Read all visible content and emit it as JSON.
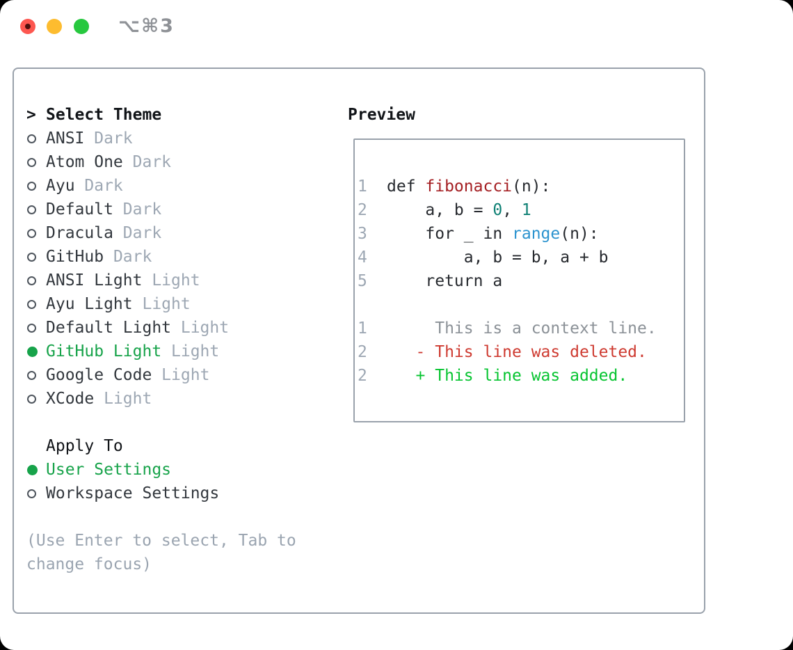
{
  "window": {
    "title": "⌥⌘3",
    "traffic_lights": [
      "close",
      "minimize",
      "zoom"
    ]
  },
  "colors": {
    "accent_green": "#17a34a",
    "added_green": "#06c430",
    "deleted_red": "#ce3a30",
    "function_red": "#a41e22",
    "number_teal": "#0e8074",
    "builtin_blue": "#2b93cf",
    "muted_gray": "#9da7b3",
    "border_gray": "#99a1ab"
  },
  "theme_picker": {
    "prompt": ">",
    "title": "Select Theme",
    "items": [
      {
        "name": "ANSI",
        "variant": "Dark",
        "selected": false
      },
      {
        "name": "Atom One",
        "variant": "Dark",
        "selected": false
      },
      {
        "name": "Ayu",
        "variant": "Dark",
        "selected": false
      },
      {
        "name": "Default",
        "variant": "Dark",
        "selected": false
      },
      {
        "name": "Dracula",
        "variant": "Dark",
        "selected": false
      },
      {
        "name": "GitHub",
        "variant": "Dark",
        "selected": false
      },
      {
        "name": "ANSI Light",
        "variant": "Light",
        "selected": false
      },
      {
        "name": "Ayu Light",
        "variant": "Light",
        "selected": false
      },
      {
        "name": "Default Light",
        "variant": "Light",
        "selected": false
      },
      {
        "name": "GitHub Light",
        "variant": "Light",
        "selected": true
      },
      {
        "name": "Google Code",
        "variant": "Light",
        "selected": false
      },
      {
        "name": "XCode",
        "variant": "Light",
        "selected": false
      }
    ],
    "apply_to": {
      "label": "Apply To",
      "options": [
        {
          "label": "User Settings",
          "selected": true
        },
        {
          "label": "Workspace Settings",
          "selected": false
        }
      ]
    },
    "hint_line1": "(Use Enter to select, Tab to",
    "hint_line2": "change focus)"
  },
  "preview": {
    "title": "Preview",
    "lines": [
      {
        "num": "1",
        "segments": [
          {
            "t": "def ",
            "c": "fg"
          },
          {
            "t": "fibonacci",
            "c": "func"
          },
          {
            "t": "(n):",
            "c": "fg"
          }
        ]
      },
      {
        "num": "2",
        "segments": [
          {
            "t": "    a, b = ",
            "c": "fg"
          },
          {
            "t": "0",
            "c": "lit"
          },
          {
            "t": ", ",
            "c": "fg"
          },
          {
            "t": "1",
            "c": "lit"
          }
        ]
      },
      {
        "num": "3",
        "segments": [
          {
            "t": "    for _ in ",
            "c": "fg"
          },
          {
            "t": "range",
            "c": "call"
          },
          {
            "t": "(n):",
            "c": "fg"
          }
        ]
      },
      {
        "num": "4",
        "segments": [
          {
            "t": "        a, b = b, a + b",
            "c": "fg"
          }
        ]
      },
      {
        "num": "5",
        "segments": [
          {
            "t": "    return a",
            "c": "fg"
          }
        ]
      },
      {
        "num": "",
        "segments": []
      },
      {
        "num": "1",
        "segments": [
          {
            "t": "     This is a context line.",
            "c": "ctx"
          }
        ]
      },
      {
        "num": "2",
        "segments": [
          {
            "t": "   - This line was deleted.",
            "c": "del"
          }
        ]
      },
      {
        "num": "2",
        "segments": [
          {
            "t": "   + This line was added.",
            "c": "add"
          }
        ]
      }
    ]
  }
}
